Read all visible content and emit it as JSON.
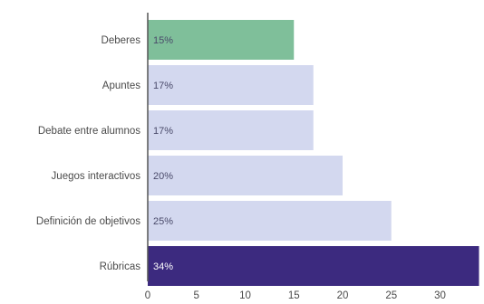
{
  "chart_data": {
    "type": "bar",
    "orientation": "horizontal",
    "categories": [
      "Deberes",
      "Apuntes",
      "Debate entre alumnos",
      "Juegos interactivos",
      "Definición de objetivos",
      "Rúbricas"
    ],
    "values": [
      15,
      17,
      17,
      20,
      25,
      34
    ],
    "value_labels": [
      "15%",
      "17%",
      "17%",
      "20%",
      "25%",
      "34%"
    ],
    "bar_colors": [
      "#7fbf9a",
      "#d3d8ef",
      "#d3d8ef",
      "#d3d8ef",
      "#d3d8ef",
      "#3c2a7f"
    ],
    "xticks": [
      "0",
      "5",
      "10",
      "15",
      "20",
      "25",
      "30"
    ],
    "xlim": [
      0,
      34
    ],
    "grid": false,
    "title": "",
    "xlabel": "",
    "ylabel": ""
  }
}
